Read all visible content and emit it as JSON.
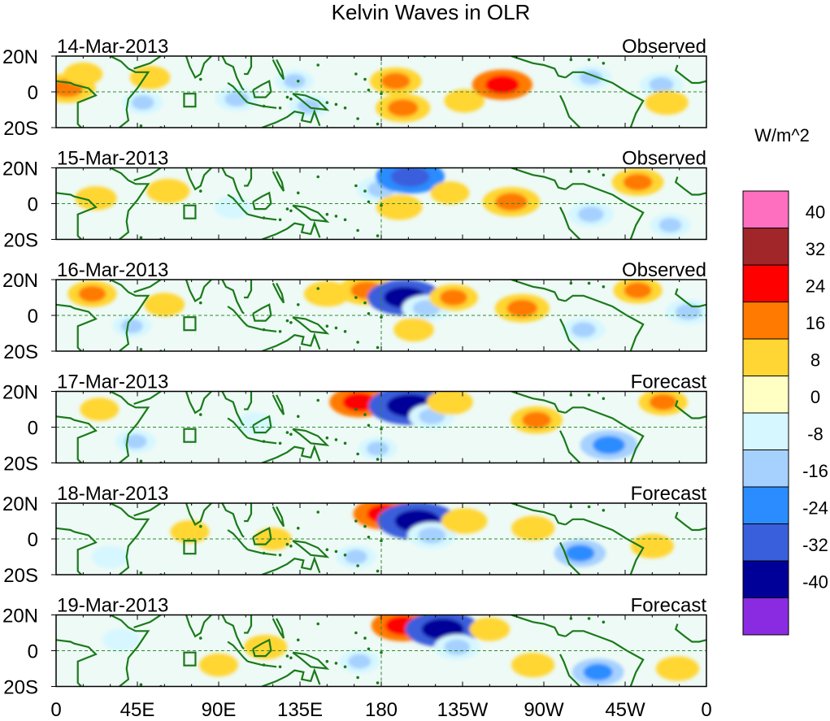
{
  "chart_data": {
    "type": "heatmap",
    "title": "Kelvin Waves in OLR",
    "colorbar": {
      "label": "W/m^2",
      "levels": [
        "40",
        "32",
        "24",
        "16",
        "8",
        "0",
        "-8",
        "-16",
        "-24",
        "-32",
        "-40"
      ],
      "colors": [
        "#ff6fbf",
        "#a0262a",
        "#ff0000",
        "#ff7a00",
        "#ffd633",
        "#ffffc4",
        "#d6f7ff",
        "#a6d1ff",
        "#2b8cff",
        "#3a5fdc",
        "#000099",
        "#8a2be2"
      ]
    },
    "x_ticks": [
      "0",
      "45E",
      "90E",
      "135E",
      "180",
      "135W",
      "90W",
      "45W",
      "0"
    ],
    "x_tick_degrees": [
      0,
      45,
      90,
      135,
      180,
      225,
      270,
      315,
      360
    ],
    "y_ticks": [
      "20N",
      "0",
      "20S"
    ],
    "y_tick_degrees": [
      20,
      0,
      -20
    ],
    "xlim": [
      0,
      360
    ],
    "ylim": [
      -20,
      20
    ],
    "coastline_color": "#1a7a1a",
    "panels": [
      {
        "date": "14-Mar-2013",
        "label": "Observed",
        "anomalies": [
          {
            "lon": 6,
            "lat": 2,
            "val": 22
          },
          {
            "lon": 15,
            "lat": 10,
            "val": 9
          },
          {
            "lon": 52,
            "lat": 8,
            "val": 10
          },
          {
            "lon": 48,
            "lat": -6,
            "val": -10
          },
          {
            "lon": 100,
            "lat": -4,
            "val": -12
          },
          {
            "lon": 132,
            "lat": 6,
            "val": -9
          },
          {
            "lon": 140,
            "lat": -8,
            "val": -10
          },
          {
            "lon": 188,
            "lat": 6,
            "val": 18
          },
          {
            "lon": 192,
            "lat": -9,
            "val": 20
          },
          {
            "lon": 226,
            "lat": -5,
            "val": 10
          },
          {
            "lon": 247,
            "lat": 4,
            "val": 24
          },
          {
            "lon": 296,
            "lat": 8,
            "val": -10
          },
          {
            "lon": 335,
            "lat": 4,
            "val": -12
          },
          {
            "lon": 338,
            "lat": -6,
            "val": 12
          }
        ]
      },
      {
        "date": "15-Mar-2013",
        "label": "Observed",
        "anomalies": [
          {
            "lon": 22,
            "lat": 3,
            "val": 11
          },
          {
            "lon": 62,
            "lat": 7,
            "val": 12
          },
          {
            "lon": 98,
            "lat": -2,
            "val": -8
          },
          {
            "lon": 180,
            "lat": 8,
            "val": -16
          },
          {
            "lon": 196,
            "lat": 15,
            "val": -30
          },
          {
            "lon": 190,
            "lat": -2,
            "val": 14
          },
          {
            "lon": 218,
            "lat": 6,
            "val": 9
          },
          {
            "lon": 252,
            "lat": 1,
            "val": 22
          },
          {
            "lon": 296,
            "lat": -6,
            "val": -14
          },
          {
            "lon": 322,
            "lat": 12,
            "val": 18
          },
          {
            "lon": 340,
            "lat": -12,
            "val": -10
          }
        ]
      },
      {
        "date": "16-Mar-2013",
        "label": "Observed",
        "anomalies": [
          {
            "lon": 20,
            "lat": 12,
            "val": 16
          },
          {
            "lon": 42,
            "lat": -6,
            "val": -9
          },
          {
            "lon": 60,
            "lat": 6,
            "val": 10
          },
          {
            "lon": 150,
            "lat": 12,
            "val": 14
          },
          {
            "lon": 172,
            "lat": 14,
            "val": 22
          },
          {
            "lon": 193,
            "lat": 10,
            "val": -34
          },
          {
            "lon": 205,
            "lat": 4,
            "val": -16
          },
          {
            "lon": 220,
            "lat": 10,
            "val": 16
          },
          {
            "lon": 198,
            "lat": -8,
            "val": 10
          },
          {
            "lon": 258,
            "lat": 4,
            "val": 20
          },
          {
            "lon": 322,
            "lat": 14,
            "val": 16
          },
          {
            "lon": 292,
            "lat": -8,
            "val": -12
          },
          {
            "lon": 350,
            "lat": 2,
            "val": -14
          }
        ]
      },
      {
        "date": "17-Mar-2013",
        "label": "Forecast",
        "anomalies": [
          {
            "lon": 24,
            "lat": 10,
            "val": 9
          },
          {
            "lon": 44,
            "lat": -8,
            "val": -10
          },
          {
            "lon": 168,
            "lat": 14,
            "val": 24
          },
          {
            "lon": 196,
            "lat": 12,
            "val": -40
          },
          {
            "lon": 208,
            "lat": 6,
            "val": -14
          },
          {
            "lon": 218,
            "lat": 14,
            "val": 14
          },
          {
            "lon": 178,
            "lat": -12,
            "val": -9
          },
          {
            "lon": 266,
            "lat": 4,
            "val": 18
          },
          {
            "lon": 306,
            "lat": -10,
            "val": -22
          },
          {
            "lon": 336,
            "lat": 14,
            "val": 16
          },
          {
            "lon": 110,
            "lat": 2,
            "val": -8
          }
        ]
      },
      {
        "date": "18-Mar-2013",
        "label": "Forecast",
        "anomalies": [
          {
            "lon": 74,
            "lat": 4,
            "val": 9
          },
          {
            "lon": 120,
            "lat": 0,
            "val": 8
          },
          {
            "lon": 182,
            "lat": 14,
            "val": 26
          },
          {
            "lon": 200,
            "lat": 10,
            "val": -38
          },
          {
            "lon": 208,
            "lat": 2,
            "val": -16
          },
          {
            "lon": 226,
            "lat": 10,
            "val": 14
          },
          {
            "lon": 166,
            "lat": -10,
            "val": -10
          },
          {
            "lon": 264,
            "lat": 6,
            "val": 12
          },
          {
            "lon": 290,
            "lat": -8,
            "val": -18
          },
          {
            "lon": 330,
            "lat": -4,
            "val": 12
          },
          {
            "lon": 30,
            "lat": -10,
            "val": -8
          }
        ]
      },
      {
        "date": "19-Mar-2013",
        "label": "Forecast",
        "anomalies": [
          {
            "lon": 116,
            "lat": 2,
            "val": 12
          },
          {
            "lon": 90,
            "lat": -8,
            "val": 9
          },
          {
            "lon": 192,
            "lat": 14,
            "val": 26
          },
          {
            "lon": 214,
            "lat": 12,
            "val": -34
          },
          {
            "lon": 222,
            "lat": 2,
            "val": -14
          },
          {
            "lon": 240,
            "lat": 12,
            "val": 10
          },
          {
            "lon": 168,
            "lat": -6,
            "val": -10
          },
          {
            "lon": 264,
            "lat": -8,
            "val": 12
          },
          {
            "lon": 300,
            "lat": -12,
            "val": -18
          },
          {
            "lon": 344,
            "lat": -10,
            "val": 12
          },
          {
            "lon": 36,
            "lat": 6,
            "val": -8
          }
        ]
      }
    ]
  }
}
